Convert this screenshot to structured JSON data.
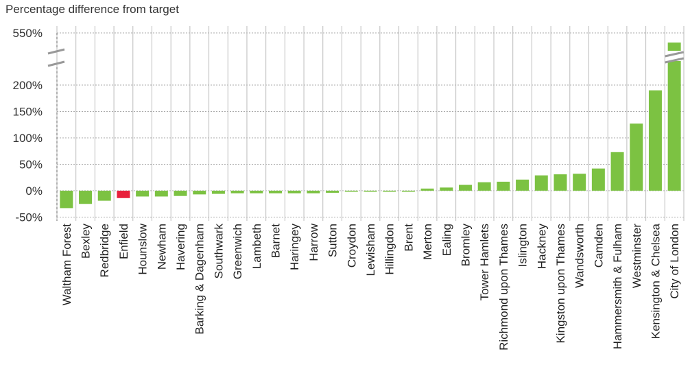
{
  "chart_data": {
    "type": "bar",
    "title": "",
    "ylabel": "Percentage difference from target",
    "xlabel": "",
    "y_ticks": [
      "550%",
      "200%",
      "150%",
      "100%",
      "50%",
      "0%",
      "-50%"
    ],
    "axis_break": "between 200% and 550%",
    "grid": true,
    "categories": [
      "Waltham Forest",
      "Bexley",
      "Redbridge",
      "Enfield",
      "Hounslow",
      "Newham",
      "Havering",
      "Barking & Dagenham",
      "Southwark",
      "Greenwich",
      "Lambeth",
      "Barnet",
      "Haringey",
      "Harrow",
      "Sutton",
      "Croydon",
      "Lewisham",
      "Hillingdon",
      "Brent",
      "Merton",
      "Ealing",
      "Bromley",
      "Tower Hamlets",
      "Richmond upon Thames",
      "Islington",
      "Hackney",
      "Kingston upon Thames",
      "Wandsworth",
      "Camden",
      "Hammersmith & Fulham",
      "Westminster",
      "Kensington & Chelsea",
      "City of London"
    ],
    "values": [
      -33,
      -25,
      -19,
      -14,
      -11,
      -11,
      -10,
      -7,
      -6,
      -5,
      -5,
      -5,
      -5,
      -5,
      -4,
      -2,
      -2,
      -2,
      -2,
      4,
      6,
      11,
      16,
      17,
      21,
      29,
      31,
      32,
      42,
      73,
      127,
      190,
      550
    ],
    "colors": {
      "default": "#7cc242",
      "highlight": "#e8203b",
      "highlight_category": "Enfield",
      "grid": "#aaaaaa"
    }
  }
}
